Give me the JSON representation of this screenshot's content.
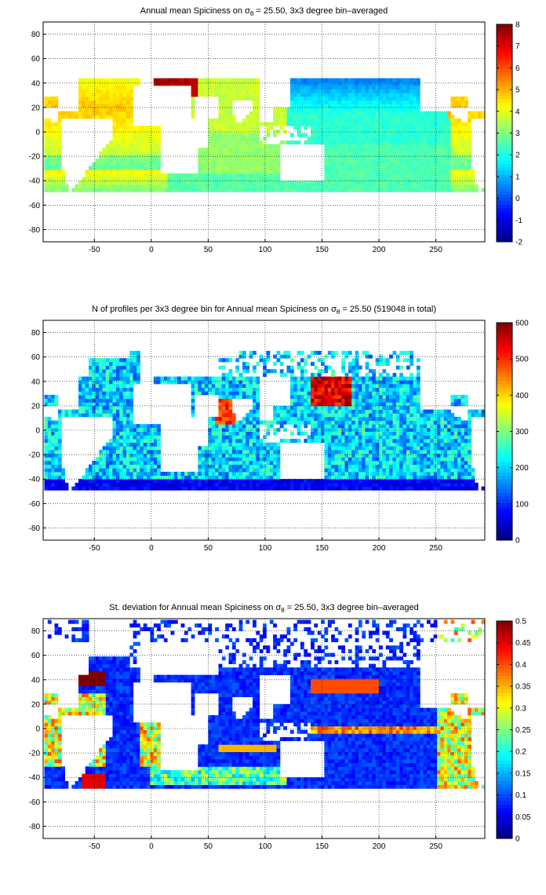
{
  "chart_data": [
    {
      "type": "heatmap",
      "title_prefix": "Annual mean Spiciness on",
      "title_symbol": "σ",
      "title_sub": "θ",
      "title_suffix": " = 25.50, 3x3 degree bin–averaged",
      "x_ticks": [
        "-50",
        "0",
        "50",
        "100",
        "150",
        "200",
        "250"
      ],
      "x_tick_values": [
        -50,
        0,
        50,
        100,
        150,
        200,
        250
      ],
      "y_ticks": [
        "80",
        "60",
        "40",
        "20",
        "0",
        "-20",
        "-40",
        "-60",
        "-80"
      ],
      "y_tick_values": [
        80,
        60,
        40,
        20,
        0,
        -20,
        -40,
        -60,
        -80
      ],
      "xlim": [
        -95,
        293
      ],
      "ylim": [
        -90,
        90
      ],
      "grid": true,
      "colormap": "jet",
      "colorbar": {
        "min": -2,
        "max": 8,
        "ticks": [
          "8",
          "7",
          "6",
          "5",
          "4",
          "3",
          "2",
          "1",
          "0",
          "-1",
          "-2"
        ],
        "tick_values": [
          8,
          7,
          6,
          5,
          4,
          3,
          2,
          1,
          0,
          -1,
          -2
        ]
      },
      "field": "spice"
    },
    {
      "type": "heatmap",
      "title_prefix": "N of profiles per 3x3 degree bin for Annual mean Spiciness on",
      "title_symbol": "σ",
      "title_sub": "θ",
      "title_suffix": " = 25.50 (519048 in total)",
      "x_ticks": [
        "-50",
        "0",
        "50",
        "100",
        "150",
        "200",
        "250"
      ],
      "x_tick_values": [
        -50,
        0,
        50,
        100,
        150,
        200,
        250
      ],
      "y_ticks": [
        "80",
        "60",
        "40",
        "20",
        "0",
        "-20",
        "-40",
        "-60",
        "-80"
      ],
      "y_tick_values": [
        80,
        60,
        40,
        20,
        0,
        -20,
        -40,
        -60,
        -80
      ],
      "xlim": [
        -95,
        293
      ],
      "ylim": [
        -90,
        90
      ],
      "grid": true,
      "colormap": "jet",
      "colorbar": {
        "min": 0,
        "max": 600,
        "ticks": [
          "600",
          "500",
          "400",
          "300",
          "200",
          "100",
          "0"
        ],
        "tick_values": [
          600,
          500,
          400,
          300,
          200,
          100,
          0
        ]
      },
      "field": "count"
    },
    {
      "type": "heatmap",
      "title_prefix": "St. deviation for Annual mean Spiciness on",
      "title_symbol": "σ",
      "title_sub": "θ",
      "title_suffix": " = 25.50, 3x3 degree bin–averaged",
      "x_ticks": [
        "-50",
        "0",
        "50",
        "100",
        "150",
        "200",
        "250"
      ],
      "x_tick_values": [
        -50,
        0,
        50,
        100,
        150,
        200,
        250
      ],
      "y_ticks": [
        "80",
        "60",
        "40",
        "20",
        "0",
        "-20",
        "-40",
        "-60",
        "-80"
      ],
      "y_tick_values": [
        80,
        60,
        40,
        20,
        0,
        -20,
        -40,
        -60,
        -80
      ],
      "xlim": [
        -95,
        293
      ],
      "ylim": [
        -90,
        90
      ],
      "grid": true,
      "colormap": "jet",
      "colorbar": {
        "min": 0,
        "max": 0.5,
        "ticks": [
          "0.5",
          "0.45",
          "0.4",
          "0.35",
          "0.3",
          "0.25",
          "0.2",
          "0.15",
          "0.1",
          "0.05",
          "0"
        ],
        "tick_values": [
          0.5,
          0.45,
          0.4,
          0.35,
          0.3,
          0.25,
          0.2,
          0.15,
          0.1,
          0.05,
          0
        ]
      },
      "field": "std"
    }
  ]
}
